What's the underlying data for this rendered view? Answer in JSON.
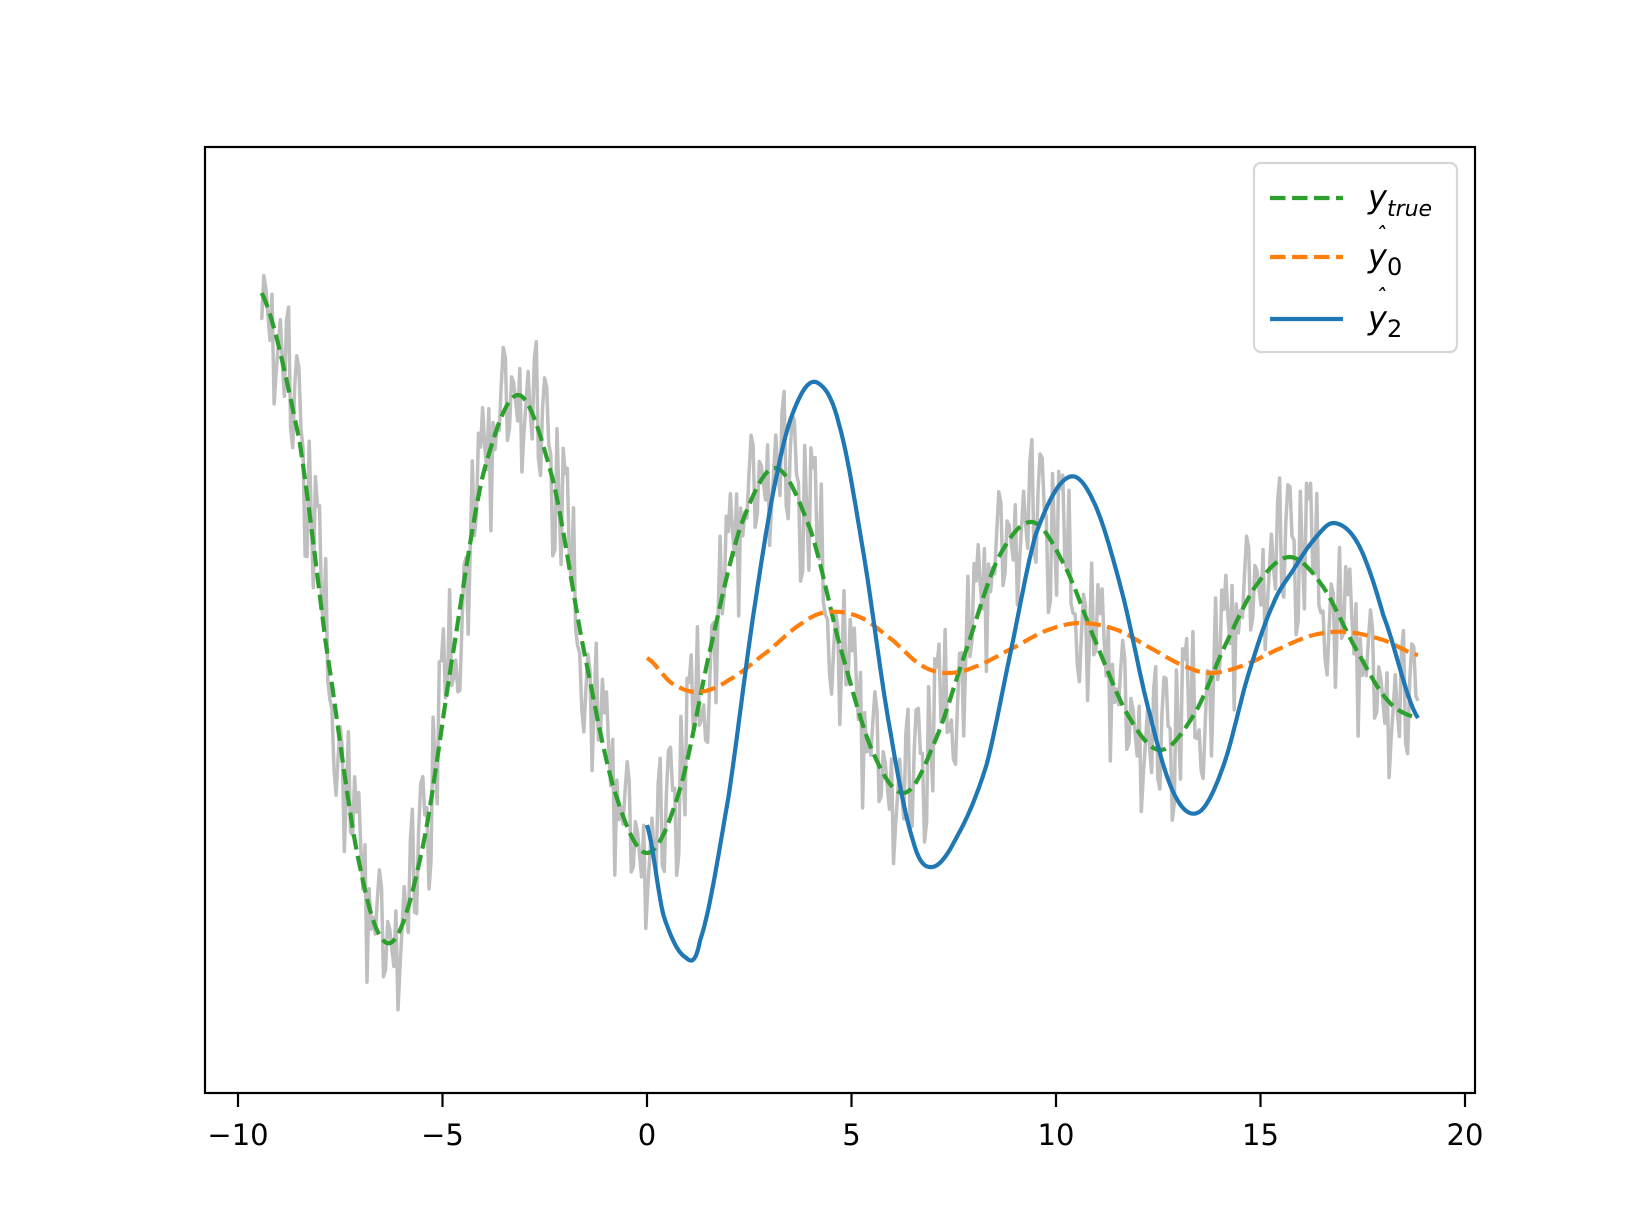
{
  "chart_data": {
    "type": "line",
    "title": "",
    "xlabel": "",
    "ylabel": "",
    "xlim": [
      -10.8,
      20.5
    ],
    "ylim": [
      -4.6,
      5.0
    ],
    "grid": false,
    "y_ticks_visible": false,
    "x_ticks": [
      -10,
      -5,
      0,
      5,
      10,
      15,
      20
    ],
    "x_tick_labels": [
      "−10",
      "−5",
      "0",
      "5",
      "10",
      "15",
      "20"
    ],
    "legend_position": "upper right",
    "legend": [
      {
        "key": "y_true",
        "label_main": "y",
        "label_sub": "true",
        "hat": false,
        "color": "#2ca02c",
        "style": "dashed"
      },
      {
        "key": "yhat_0",
        "label_main": "y",
        "label_sub": "0",
        "hat": true,
        "color": "#ff7f0e",
        "style": "dashed"
      },
      {
        "key": "yhat_2",
        "label_main": "y",
        "label_sub": "2",
        "hat": true,
        "color": "#1f77b4",
        "style": "solid"
      }
    ],
    "series": [
      {
        "name": "observed (noisy)",
        "color": "#bfbfbf",
        "style": "solid",
        "in_legend": false,
        "x_range": [
          -9.42,
          18.85
        ],
        "description": "noisy samples scattered around y_true",
        "noise_offsets": [
          0.25,
          -0.6,
          1.1,
          -0.3,
          0.45,
          -0.9,
          0.7,
          0.15,
          -1.0,
          0.9,
          -0.2,
          0.5,
          -0.75,
          1.0,
          -0.4,
          0.2,
          0.85,
          -0.55,
          0.3,
          -1.1,
          0.6,
          -0.15,
          0.95,
          -0.7,
          0.35,
          -0.35,
          1.2,
          -0.85,
          0.1,
          0.55,
          -0.5,
          0.8,
          -0.25,
          0.4,
          -0.95,
          0.65,
          -0.05,
          1.05,
          -0.65,
          0.2,
          -0.45,
          0.9,
          -0.8,
          0.5,
          0.05,
          -1.2,
          0.75,
          -0.3,
          0.6,
          -0.6,
          1.15,
          -0.2,
          0.3,
          -0.9,
          0.85,
          -0.4,
          0.45,
          -0.7,
          0.25,
          0.7
        ]
      },
      {
        "name": "y_true",
        "color": "#2ca02c",
        "style": "dashed",
        "points": [
          [
            -9.42,
            3.52
          ],
          [
            -8.5,
            2.05
          ],
          [
            -7.85,
            0.0
          ],
          [
            -7.0,
            -2.25
          ],
          [
            -6.28,
            -2.98
          ],
          [
            -5.5,
            -2.05
          ],
          [
            -4.71,
            0.0
          ],
          [
            -4.0,
            1.72
          ],
          [
            -3.14,
            2.5
          ],
          [
            -2.3,
            1.65
          ],
          [
            -1.57,
            0.0
          ],
          [
            -0.8,
            -1.45
          ],
          [
            0.0,
            -2.08
          ],
          [
            0.8,
            -1.45
          ],
          [
            1.57,
            0.0
          ],
          [
            2.3,
            1.2
          ],
          [
            3.14,
            1.77
          ],
          [
            4.0,
            1.15
          ],
          [
            4.71,
            0.0
          ],
          [
            5.5,
            -1.05
          ],
          [
            6.28,
            -1.48
          ],
          [
            7.0,
            -1.0
          ],
          [
            7.85,
            0.0
          ],
          [
            8.6,
            0.88
          ],
          [
            9.42,
            1.23
          ],
          [
            10.2,
            0.8
          ],
          [
            11.0,
            0.0
          ],
          [
            11.8,
            -0.73
          ],
          [
            12.57,
            -1.05
          ],
          [
            13.4,
            -0.68
          ],
          [
            14.14,
            0.0
          ],
          [
            14.9,
            0.6
          ],
          [
            15.71,
            0.88
          ],
          [
            16.5,
            0.6
          ],
          [
            17.28,
            0.0
          ],
          [
            18.1,
            -0.55
          ],
          [
            18.85,
            -0.73
          ]
        ]
      },
      {
        "name": "yhat_0",
        "color": "#ff7f0e",
        "style": "dashed",
        "points": [
          [
            0.0,
            -0.13
          ],
          [
            0.6,
            -0.38
          ],
          [
            1.25,
            -0.47
          ],
          [
            2.0,
            -0.35
          ],
          [
            3.0,
            -0.05
          ],
          [
            3.8,
            0.22
          ],
          [
            4.4,
            0.33
          ],
          [
            5.2,
            0.28
          ],
          [
            6.0,
            0.05
          ],
          [
            6.7,
            -0.2
          ],
          [
            7.3,
            -0.28
          ],
          [
            8.0,
            -0.22
          ],
          [
            9.0,
            -0.02
          ],
          [
            9.8,
            0.15
          ],
          [
            10.6,
            0.22
          ],
          [
            11.5,
            0.15
          ],
          [
            12.4,
            -0.05
          ],
          [
            13.2,
            -0.22
          ],
          [
            13.8,
            -0.28
          ],
          [
            14.6,
            -0.2
          ],
          [
            15.5,
            -0.03
          ],
          [
            16.3,
            0.1
          ],
          [
            17.1,
            0.13
          ],
          [
            18.0,
            0.05
          ],
          [
            18.85,
            -0.1
          ]
        ]
      },
      {
        "name": "yhat_2",
        "color": "#1f77b4",
        "style": "solid",
        "points": [
          [
            0.0,
            -1.8
          ],
          [
            0.4,
            -2.7
          ],
          [
            0.93,
            -3.12
          ],
          [
            1.3,
            -2.95
          ],
          [
            2.0,
            -1.5
          ],
          [
            2.6,
            0.3
          ],
          [
            3.2,
            1.75
          ],
          [
            3.7,
            2.45
          ],
          [
            4.18,
            2.62
          ],
          [
            4.7,
            2.2
          ],
          [
            5.3,
            0.9
          ],
          [
            5.9,
            -0.75
          ],
          [
            6.5,
            -1.95
          ],
          [
            6.97,
            -2.22
          ],
          [
            7.6,
            -1.9
          ],
          [
            8.3,
            -1.2
          ],
          [
            8.9,
            -0.05
          ],
          [
            9.5,
            1.1
          ],
          [
            10.27,
            1.67
          ],
          [
            10.9,
            1.45
          ],
          [
            11.6,
            0.55
          ],
          [
            12.3,
            -0.7
          ],
          [
            12.9,
            -1.5
          ],
          [
            13.5,
            -1.67
          ],
          [
            14.1,
            -1.2
          ],
          [
            14.7,
            -0.3
          ],
          [
            15.3,
            0.4
          ],
          [
            15.8,
            0.75
          ],
          [
            16.3,
            1.05
          ],
          [
            16.8,
            1.22
          ],
          [
            17.4,
            1.0
          ],
          [
            18.0,
            0.3
          ],
          [
            18.85,
            -0.73
          ]
        ]
      }
    ]
  }
}
